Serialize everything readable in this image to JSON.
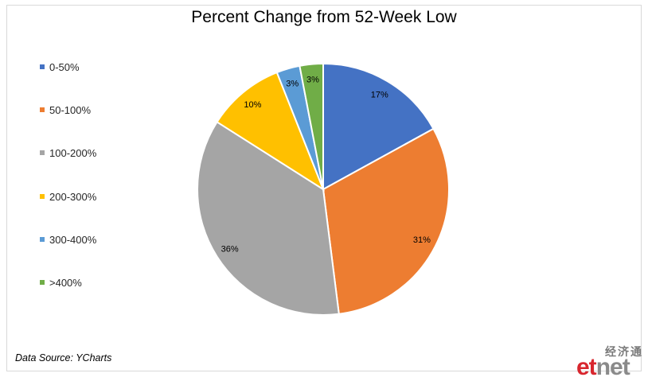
{
  "chart_data": {
    "type": "pie",
    "title": "Percent Change from 52-Week Low",
    "categories": [
      "0-50%",
      "50-100%",
      "100-200%",
      "200-300%",
      "300-400%",
      ">400%"
    ],
    "values": [
      17,
      31,
      36,
      10,
      3,
      3
    ],
    "data_labels": [
      "17%",
      "31%",
      "36%",
      "10%",
      "3%",
      "3%"
    ],
    "colors": [
      "#4472c4",
      "#ed7d31",
      "#a5a5a5",
      "#ffc000",
      "#5b9bd5",
      "#70ad47"
    ],
    "legend_position": "left",
    "start_angle": "12 o'clock",
    "direction": "clockwise"
  },
  "source": "Data Source: YCharts",
  "watermark": {
    "chinese": "经济通",
    "brand_et": "et",
    "brand_net": "net"
  }
}
